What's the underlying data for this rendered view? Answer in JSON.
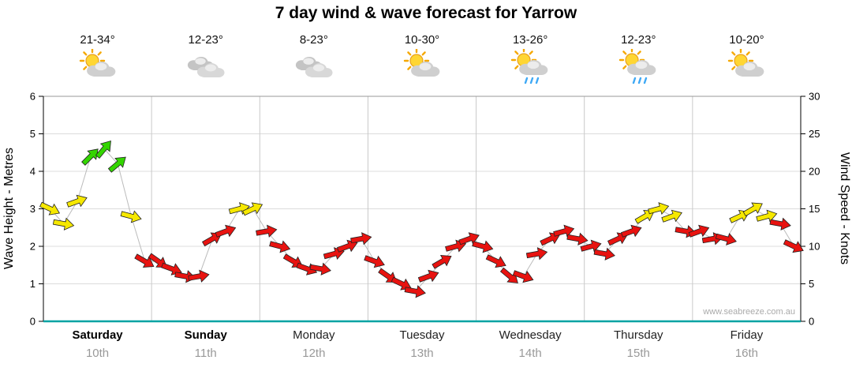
{
  "title": "7 day wind & wave forecast for Yarrow",
  "watermark": "www.seabreeze.com.au",
  "axes": {
    "left_label": "Wave Height - Metres",
    "right_label": "Wind Speed - Knots",
    "left_ticks": [
      0,
      1,
      2,
      3,
      4,
      5,
      6
    ],
    "right_ticks": [
      0,
      5,
      10,
      15,
      20,
      25,
      30
    ]
  },
  "days": [
    {
      "name": "Saturday",
      "date": "10th",
      "temp": "21-34°",
      "icon": "sun-cloud",
      "weekend": true
    },
    {
      "name": "Sunday",
      "date": "11th",
      "temp": "12-23°",
      "icon": "cloud",
      "weekend": true
    },
    {
      "name": "Monday",
      "date": "12th",
      "temp": "8-23°",
      "icon": "cloud",
      "weekend": false
    },
    {
      "name": "Tuesday",
      "date": "13th",
      "temp": "10-30°",
      "icon": "sun-cloud",
      "weekend": false
    },
    {
      "name": "Wednesday",
      "date": "14th",
      "temp": "13-26°",
      "icon": "sun-rain",
      "weekend": false
    },
    {
      "name": "Thursday",
      "date": "15th",
      "temp": "12-23°",
      "icon": "sun-rain",
      "weekend": false
    },
    {
      "name": "Friday",
      "date": "16th",
      "temp": "10-20°",
      "icon": "sun-cloud",
      "weekend": false
    }
  ],
  "chart_data": {
    "type": "scatter",
    "marker": "wind-arrow",
    "title": "7 day wind & wave forecast for Yarrow",
    "x_categories": [
      "Saturday 10th",
      "Sunday 11th",
      "Monday 12th",
      "Tuesday 13th",
      "Wednesday 14th",
      "Thursday 15th",
      "Friday 16th"
    ],
    "points_per_day": 8,
    "ylabel_left": "Wave Height - Metres",
    "ylim_left": [
      0,
      6
    ],
    "ylabel_right": "Wind Speed - Knots",
    "ylim_right": [
      0,
      30
    ],
    "grid": true,
    "legend": false,
    "wind_speed_colors": {
      "green": "#33D500",
      "yellow": "#F6E800",
      "red": "#E81310"
    },
    "series": [
      {
        "name": "Wind speed (knots)",
        "values": [
          15,
          13,
          16,
          22,
          23,
          21,
          14,
          8,
          8,
          7,
          6,
          6,
          11,
          12,
          15,
          15,
          12,
          10,
          8,
          7,
          7,
          9,
          10,
          11,
          8,
          6,
          5,
          4,
          6,
          8,
          10,
          11,
          10,
          8,
          6,
          6,
          9,
          11,
          12,
          11,
          10,
          9,
          11,
          12,
          14,
          15,
          14,
          12,
          12,
          11,
          11,
          14,
          15,
          14,
          13,
          10
        ],
        "colors": [
          "yellow",
          "yellow",
          "yellow",
          "green",
          "green",
          "green",
          "yellow",
          "red",
          "red",
          "red",
          "red",
          "red",
          "red",
          "red",
          "yellow",
          "yellow",
          "red",
          "red",
          "red",
          "red",
          "red",
          "red",
          "red",
          "red",
          "red",
          "red",
          "red",
          "red",
          "red",
          "red",
          "red",
          "red",
          "red",
          "red",
          "red",
          "red",
          "red",
          "red",
          "red",
          "red",
          "red",
          "red",
          "red",
          "red",
          "yellow",
          "yellow",
          "yellow",
          "red",
          "red",
          "red",
          "red",
          "yellow",
          "yellow",
          "yellow",
          "red",
          "red"
        ],
        "directions_deg": [
          25,
          10,
          -20,
          -45,
          -50,
          -40,
          15,
          30,
          35,
          20,
          10,
          -10,
          -30,
          -20,
          -15,
          -25,
          -10,
          15,
          30,
          20,
          10,
          -15,
          -20,
          -10,
          20,
          35,
          25,
          10,
          -20,
          -30,
          -15,
          -20,
          15,
          25,
          40,
          20,
          -10,
          -25,
          -15,
          10,
          -15,
          10,
          -25,
          -20,
          -30,
          -15,
          -20,
          10,
          -20,
          -10,
          15,
          -25,
          -30,
          -15,
          10,
          25
        ]
      }
    ]
  }
}
